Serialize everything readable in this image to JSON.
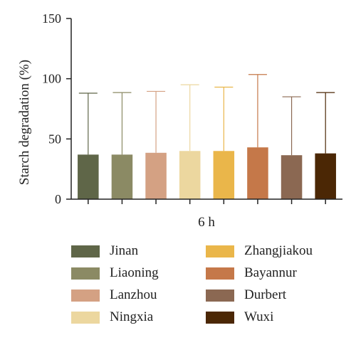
{
  "chart_data": {
    "type": "bar",
    "title": "",
    "xlabel": "6 h",
    "ylabel": "Starch degradation (%)",
    "ylim": [
      0,
      150
    ],
    "yticks": [
      "0",
      "50",
      "100",
      "150"
    ],
    "grid": false,
    "legend_position": "bottom",
    "categories": [
      "Jinan",
      "Liaoning",
      "Lanzhou",
      "Ningxia",
      "Zhangjiakou",
      "Bayannur",
      "Durbert",
      "Wuxi"
    ],
    "values": [
      37,
      37,
      38.5,
      40,
      40,
      43,
      36.5,
      38
    ],
    "error_upper": [
      88,
      88.5,
      89.5,
      95,
      93,
      103.5,
      85,
      88.5
    ],
    "colors": [
      "#5f6648",
      "#8b8a64",
      "#d4a183",
      "#ecd79f",
      "#eab64a",
      "#c57849",
      "#8b6852",
      "#4b2705"
    ]
  }
}
